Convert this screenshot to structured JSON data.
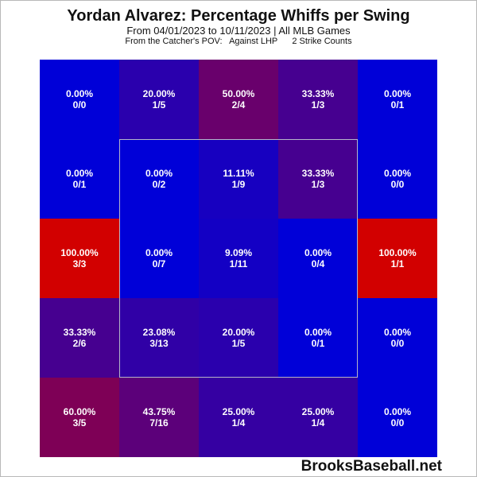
{
  "header": {
    "title": "Yordan Alvarez: Percentage Whiffs per Swing",
    "subtitle": "From 04/01/2023 to 10/11/2023 | All MLB Games",
    "context": "From the Catcher's POV:   Against LHP      2 Strike Counts"
  },
  "watermark": "BrooksBaseball.net",
  "colors": {
    "low": "#0000d8",
    "high": "#d20000"
  },
  "chart_data": {
    "type": "heatmap",
    "title": "Yordan Alvarez: Percentage Whiffs per Swing",
    "rows": 5,
    "cols": 5,
    "cells": [
      [
        {
          "pct": "0.00%",
          "count": "0/0",
          "value": 0
        },
        {
          "pct": "20.00%",
          "count": "1/5",
          "value": 20
        },
        {
          "pct": "50.00%",
          "count": "2/4",
          "value": 50
        },
        {
          "pct": "33.33%",
          "count": "1/3",
          "value": 33.33
        },
        {
          "pct": "0.00%",
          "count": "0/1",
          "value": 0
        }
      ],
      [
        {
          "pct": "0.00%",
          "count": "0/1",
          "value": 0
        },
        {
          "pct": "0.00%",
          "count": "0/2",
          "value": 0
        },
        {
          "pct": "11.11%",
          "count": "1/9",
          "value": 11.11
        },
        {
          "pct": "33.33%",
          "count": "1/3",
          "value": 33.33
        },
        {
          "pct": "0.00%",
          "count": "0/0",
          "value": 0
        }
      ],
      [
        {
          "pct": "100.00%",
          "count": "3/3",
          "value": 100
        },
        {
          "pct": "0.00%",
          "count": "0/7",
          "value": 0
        },
        {
          "pct": "9.09%",
          "count": "1/11",
          "value": 9.09
        },
        {
          "pct": "0.00%",
          "count": "0/4",
          "value": 0
        },
        {
          "pct": "100.00%",
          "count": "1/1",
          "value": 100
        }
      ],
      [
        {
          "pct": "33.33%",
          "count": "2/6",
          "value": 33.33
        },
        {
          "pct": "23.08%",
          "count": "3/13",
          "value": 23.08
        },
        {
          "pct": "20.00%",
          "count": "1/5",
          "value": 20
        },
        {
          "pct": "0.00%",
          "count": "0/1",
          "value": 0
        },
        {
          "pct": "0.00%",
          "count": "0/0",
          "value": 0
        }
      ],
      [
        {
          "pct": "60.00%",
          "count": "3/5",
          "value": 60
        },
        {
          "pct": "43.75%",
          "count": "7/16",
          "value": 43.75
        },
        {
          "pct": "25.00%",
          "count": "1/4",
          "value": 25
        },
        {
          "pct": "25.00%",
          "count": "1/4",
          "value": 25
        },
        {
          "pct": "0.00%",
          "count": "0/0",
          "value": 0
        }
      ]
    ]
  }
}
